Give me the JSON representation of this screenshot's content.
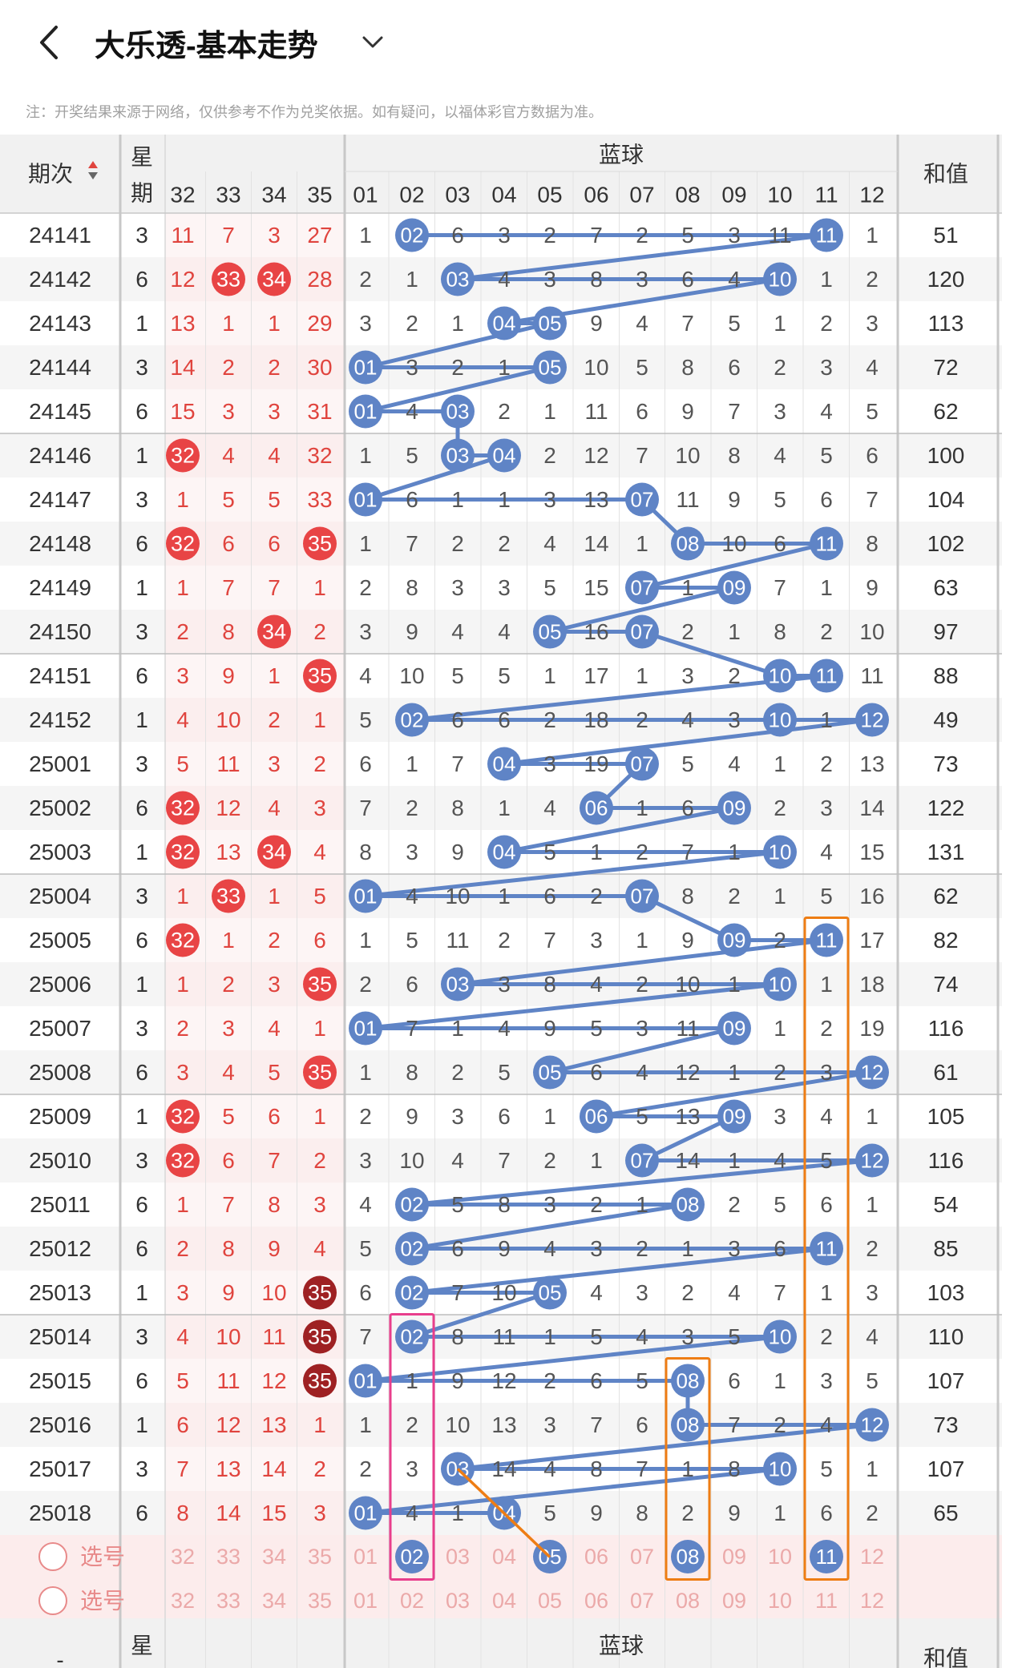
{
  "header": {
    "title": "大乐透-基本走势"
  },
  "notice": "注：开奖结果来源于网络，仅供参考不作为兑奖依据。如有疑问，以福体彩官方数据为准。",
  "table": {
    "period_header": "期次",
    "week_header_top": "星",
    "week_header_bottom": "期",
    "blue_section_label": "蓝球",
    "sum_header": "和值",
    "front_cols": [
      "32",
      "33",
      "34",
      "35"
    ],
    "blue_cols": [
      "01",
      "02",
      "03",
      "04",
      "05",
      "06",
      "07",
      "08",
      "09",
      "10",
      "11",
      "12"
    ]
  },
  "rows": [
    {
      "period": "24141",
      "week": "3",
      "front": [
        "11",
        "7",
        "3",
        "27"
      ],
      "blue": [
        "1",
        "02",
        "6",
        "3",
        "2",
        "7",
        "2",
        "5",
        "3",
        "11",
        "11",
        "1"
      ],
      "sum": "51"
    },
    {
      "period": "24142",
      "week": "6",
      "front": [
        "12",
        "33",
        "34",
        "28"
      ],
      "blue": [
        "2",
        "1",
        "03",
        "4",
        "3",
        "8",
        "3",
        "6",
        "4",
        "10",
        "1",
        "2"
      ],
      "sum": "120"
    },
    {
      "period": "24143",
      "week": "1",
      "front": [
        "13",
        "1",
        "1",
        "29"
      ],
      "blue": [
        "3",
        "2",
        "1",
        "04",
        "05",
        "9",
        "4",
        "7",
        "5",
        "1",
        "2",
        "3"
      ],
      "sum": "113"
    },
    {
      "period": "24144",
      "week": "3",
      "front": [
        "14",
        "2",
        "2",
        "30"
      ],
      "blue": [
        "01",
        "3",
        "2",
        "1",
        "05",
        "10",
        "5",
        "8",
        "6",
        "2",
        "3",
        "4"
      ],
      "sum": "72"
    },
    {
      "period": "24145",
      "week": "6",
      "front": [
        "15",
        "3",
        "3",
        "31"
      ],
      "blue": [
        "01",
        "4",
        "03",
        "2",
        "1",
        "11",
        "6",
        "9",
        "7",
        "3",
        "4",
        "5"
      ],
      "sum": "62"
    },
    {
      "period": "24146",
      "week": "1",
      "front": [
        "32",
        "4",
        "4",
        "32"
      ],
      "blue": [
        "1",
        "5",
        "03",
        "04",
        "2",
        "12",
        "7",
        "10",
        "8",
        "4",
        "5",
        "6"
      ],
      "sum": "100"
    },
    {
      "period": "24147",
      "week": "3",
      "front": [
        "1",
        "5",
        "5",
        "33"
      ],
      "blue": [
        "01",
        "6",
        "1",
        "1",
        "3",
        "13",
        "07",
        "11",
        "9",
        "5",
        "6",
        "7"
      ],
      "sum": "104"
    },
    {
      "period": "24148",
      "week": "6",
      "front": [
        "32",
        "6",
        "6",
        "35"
      ],
      "blue": [
        "1",
        "7",
        "2",
        "2",
        "4",
        "14",
        "1",
        "08",
        "10",
        "6",
        "11",
        "8"
      ],
      "sum": "102"
    },
    {
      "period": "24149",
      "week": "1",
      "front": [
        "1",
        "7",
        "7",
        "1"
      ],
      "blue": [
        "2",
        "8",
        "3",
        "3",
        "5",
        "15",
        "07",
        "1",
        "09",
        "7",
        "1",
        "9"
      ],
      "sum": "63"
    },
    {
      "period": "24150",
      "week": "3",
      "front": [
        "2",
        "8",
        "34",
        "2"
      ],
      "blue": [
        "3",
        "9",
        "4",
        "4",
        "05",
        "16",
        "07",
        "2",
        "1",
        "8",
        "2",
        "10"
      ],
      "sum": "97"
    },
    {
      "period": "24151",
      "week": "6",
      "front": [
        "3",
        "9",
        "1",
        "35"
      ],
      "blue": [
        "4",
        "10",
        "5",
        "5",
        "1",
        "17",
        "1",
        "3",
        "2",
        "10",
        "11",
        "11"
      ],
      "sum": "88"
    },
    {
      "period": "24152",
      "week": "1",
      "front": [
        "4",
        "10",
        "2",
        "1"
      ],
      "blue": [
        "5",
        "02",
        "6",
        "6",
        "2",
        "18",
        "2",
        "4",
        "3",
        "10",
        "1",
        "12"
      ],
      "sum": "49"
    },
    {
      "period": "25001",
      "week": "3",
      "front": [
        "5",
        "11",
        "3",
        "2"
      ],
      "blue": [
        "6",
        "1",
        "7",
        "04",
        "3",
        "19",
        "07",
        "5",
        "4",
        "1",
        "2",
        "13"
      ],
      "sum": "73"
    },
    {
      "period": "25002",
      "week": "6",
      "front": [
        "32",
        "12",
        "4",
        "3"
      ],
      "blue": [
        "7",
        "2",
        "8",
        "1",
        "4",
        "06",
        "1",
        "6",
        "09",
        "2",
        "3",
        "14"
      ],
      "sum": "122"
    },
    {
      "period": "25003",
      "week": "1",
      "front": [
        "32",
        "13",
        "34",
        "4"
      ],
      "blue": [
        "8",
        "3",
        "9",
        "04",
        "5",
        "1",
        "2",
        "7",
        "1",
        "10",
        "4",
        "15"
      ],
      "sum": "131"
    },
    {
      "period": "25004",
      "week": "3",
      "front": [
        "1",
        "33",
        "1",
        "5"
      ],
      "blue": [
        "01",
        "4",
        "10",
        "1",
        "6",
        "2",
        "07",
        "8",
        "2",
        "1",
        "5",
        "16"
      ],
      "sum": "62"
    },
    {
      "period": "25005",
      "week": "6",
      "front": [
        "32",
        "1",
        "2",
        "6"
      ],
      "blue": [
        "1",
        "5",
        "11",
        "2",
        "7",
        "3",
        "1",
        "9",
        "09",
        "2",
        "11",
        "17"
      ],
      "sum": "82"
    },
    {
      "period": "25006",
      "week": "1",
      "front": [
        "1",
        "2",
        "3",
        "35"
      ],
      "blue": [
        "2",
        "6",
        "03",
        "3",
        "8",
        "4",
        "2",
        "10",
        "1",
        "10",
        "1",
        "18"
      ],
      "sum": "74"
    },
    {
      "period": "25007",
      "week": "3",
      "front": [
        "2",
        "3",
        "4",
        "1"
      ],
      "blue": [
        "01",
        "7",
        "1",
        "4",
        "9",
        "5",
        "3",
        "11",
        "09",
        "1",
        "2",
        "19"
      ],
      "sum": "116"
    },
    {
      "period": "25008",
      "week": "6",
      "front": [
        "3",
        "4",
        "5",
        "35"
      ],
      "blue": [
        "1",
        "8",
        "2",
        "5",
        "05",
        "6",
        "4",
        "12",
        "1",
        "2",
        "3",
        "12"
      ],
      "sum": "61"
    },
    {
      "period": "25009",
      "week": "1",
      "front": [
        "32",
        "5",
        "6",
        "1"
      ],
      "blue": [
        "2",
        "9",
        "3",
        "6",
        "1",
        "06",
        "5",
        "13",
        "09",
        "3",
        "4",
        "1"
      ],
      "sum": "105"
    },
    {
      "period": "25010",
      "week": "3",
      "front": [
        "32",
        "6",
        "7",
        "2"
      ],
      "blue": [
        "3",
        "10",
        "4",
        "7",
        "2",
        "1",
        "07",
        "14",
        "1",
        "4",
        "5",
        "12"
      ],
      "sum": "116"
    },
    {
      "period": "25011",
      "week": "6",
      "front": [
        "1",
        "7",
        "8",
        "3"
      ],
      "blue": [
        "4",
        "02",
        "5",
        "8",
        "3",
        "2",
        "1",
        "08",
        "2",
        "5",
        "6",
        "1"
      ],
      "sum": "54"
    },
    {
      "period": "25012",
      "week": "6",
      "front": [
        "2",
        "8",
        "9",
        "4"
      ],
      "blue": [
        "5",
        "02",
        "6",
        "9",
        "4",
        "3",
        "2",
        "1",
        "3",
        "6",
        "11",
        "2"
      ],
      "sum": "85"
    },
    {
      "period": "25013",
      "week": "1",
      "front": [
        "3",
        "9",
        "10",
        "35"
      ],
      "blue": [
        "6",
        "02",
        "7",
        "10",
        "05",
        "4",
        "3",
        "2",
        "4",
        "7",
        "1",
        "3"
      ],
      "sum": "103"
    },
    {
      "period": "25014",
      "week": "3",
      "front": [
        "4",
        "10",
        "11",
        "35"
      ],
      "blue": [
        "7",
        "02",
        "8",
        "11",
        "1",
        "5",
        "4",
        "3",
        "5",
        "10",
        "2",
        "4"
      ],
      "sum": "110"
    },
    {
      "period": "25015",
      "week": "6",
      "front": [
        "5",
        "11",
        "12",
        "35"
      ],
      "blue": [
        "01",
        "1",
        "9",
        "12",
        "2",
        "6",
        "5",
        "08",
        "6",
        "1",
        "3",
        "5"
      ],
      "sum": "107"
    },
    {
      "period": "25016",
      "week": "1",
      "front": [
        "6",
        "12",
        "13",
        "1"
      ],
      "blue": [
        "1",
        "2",
        "10",
        "13",
        "3",
        "7",
        "6",
        "08",
        "7",
        "2",
        "4",
        "12"
      ],
      "sum": "73"
    },
    {
      "period": "25017",
      "week": "3",
      "front": [
        "7",
        "13",
        "14",
        "2"
      ],
      "blue": [
        "2",
        "3",
        "03",
        "14",
        "4",
        "8",
        "7",
        "1",
        "8",
        "10",
        "5",
        "1"
      ],
      "sum": "107"
    },
    {
      "period": "25018",
      "week": "6",
      "front": [
        "8",
        "14",
        "15",
        "3"
      ],
      "blue": [
        "01",
        "4",
        "1",
        "04",
        "5",
        "9",
        "8",
        "2",
        "9",
        "1",
        "6",
        "2"
      ],
      "sum": "65"
    }
  ],
  "selector": {
    "label": "选号",
    "front": [
      "32",
      "33",
      "34",
      "35"
    ],
    "blue": [
      "01",
      "02",
      "03",
      "04",
      "05",
      "06",
      "07",
      "08",
      "09",
      "10",
      "11",
      "12"
    ],
    "selected_row1": [
      "02",
      "05",
      "08",
      "11"
    ]
  },
  "colors": {
    "blue_ball": "#5f84c6",
    "red_ball": "#e84445",
    "dark_red_ball": "#9e2123",
    "red_text": "#e0443e",
    "highlight_pink": "#e83e8c",
    "highlight_orange": "#ee7d14"
  }
}
